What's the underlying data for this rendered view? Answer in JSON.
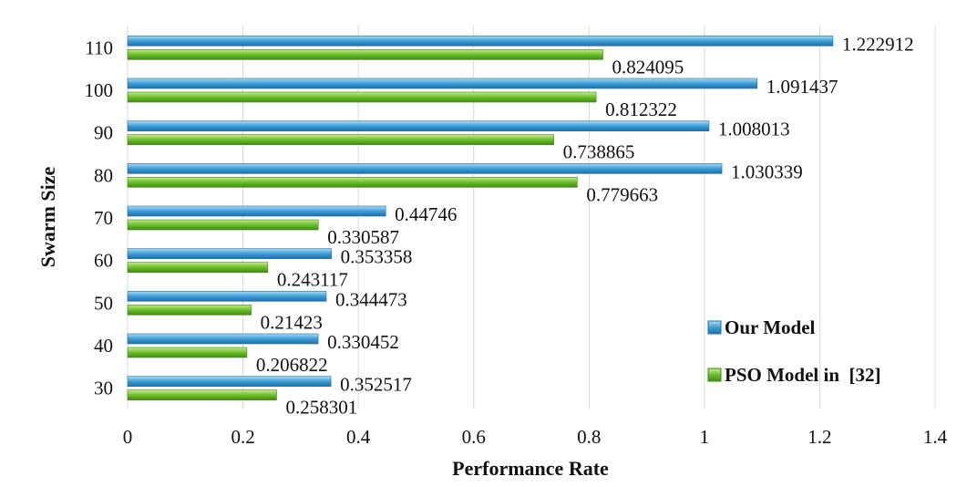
{
  "chart_data": {
    "type": "bar",
    "orientation": "horizontal",
    "categories": [
      "30",
      "40",
      "50",
      "60",
      "70",
      "80",
      "90",
      "100",
      "110"
    ],
    "series": [
      {
        "name": "Our Model",
        "color": "#3e9dd6",
        "values": [
          0.352517,
          0.330452,
          0.344473,
          0.353358,
          0.44746,
          1.030339,
          1.008013,
          1.091437,
          1.222912
        ],
        "labels": [
          "0.352517",
          "0.330452",
          "0.344473",
          "0.353358",
          "0.44746",
          "1.030339",
          "1.008013",
          "1.091437",
          "1.222912"
        ]
      },
      {
        "name": "PSO Model in  [32]",
        "color": "#6cbf2a",
        "values": [
          0.258301,
          0.206822,
          0.21423,
          0.243117,
          0.330587,
          0.779663,
          0.738865,
          0.812322,
          0.824095
        ],
        "labels": [
          "0.258301",
          "0.206822",
          "0.21423",
          "0.243117",
          "0.330587",
          "0.779663",
          "0.738865",
          "0.812322",
          "0.824095"
        ]
      }
    ],
    "xlabel": "Performance Rate",
    "ylabel": "Swarm Size",
    "xlim": [
      0,
      1.4
    ],
    "xticks": [
      "0",
      "0.2",
      "0.4",
      "0.6",
      "0.8",
      "1",
      "1.2",
      "1.4"
    ],
    "grid": true,
    "legend_position": "bottom-right"
  }
}
